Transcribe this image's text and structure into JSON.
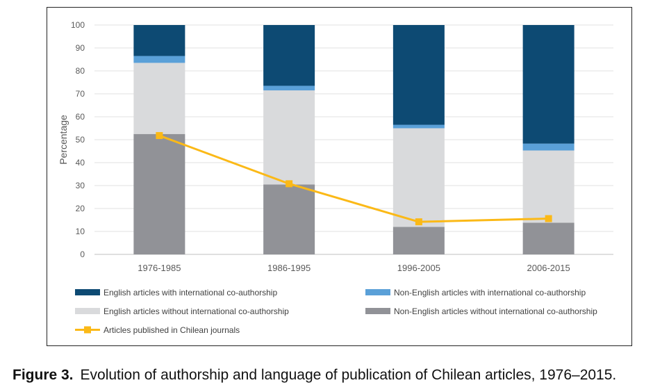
{
  "chart_data": {
    "type": "bar",
    "stacked": true,
    "ylabel": "Percentage",
    "ylim": [
      0,
      100
    ],
    "yticks": [
      0,
      10,
      20,
      30,
      40,
      50,
      60,
      70,
      80,
      90,
      100
    ],
    "grid": true,
    "categories": [
      "1976-1985",
      "1986-1995",
      "1996-2005",
      "2006-2015"
    ],
    "series": [
      {
        "name": "Non-English articles without international co-authorship",
        "color": "#919297",
        "values": [
          52.5,
          30.5,
          12.0,
          13.8
        ]
      },
      {
        "name": "English articles without international co-authorship",
        "color": "#d9dadc",
        "values": [
          31.0,
          41.0,
          43.0,
          31.5
        ]
      },
      {
        "name": "Non-English articles with international co-authorship",
        "color": "#5aa0d8",
        "values": [
          3.0,
          2.0,
          1.5,
          3.0
        ]
      },
      {
        "name": "English articles with international co-authorship",
        "color": "#0d4a73",
        "values": [
          13.5,
          26.5,
          43.5,
          51.7
        ]
      }
    ],
    "line": {
      "name": "Articles published in Chilean journals",
      "color": "#fbb917",
      "values": [
        51.8,
        30.8,
        14.2,
        15.6
      ]
    },
    "legend": [
      {
        "label": "English articles with international co-authorship",
        "color": "#0d4a73",
        "kind": "box"
      },
      {
        "label": "Non-English articles with international co-authorship",
        "color": "#5aa0d8",
        "kind": "box"
      },
      {
        "label": "English articles without international co-authorship",
        "color": "#d9dadc",
        "kind": "box"
      },
      {
        "label": "Non-English articles without international co-authorship",
        "color": "#919297",
        "kind": "box"
      },
      {
        "label": "Articles published in Chilean journals",
        "color": "#fbb917",
        "kind": "line"
      }
    ]
  },
  "caption": {
    "label": "Figure 3.",
    "text": "Evolution of authorship and language of publication of Chilean articles, 1976–2015."
  }
}
